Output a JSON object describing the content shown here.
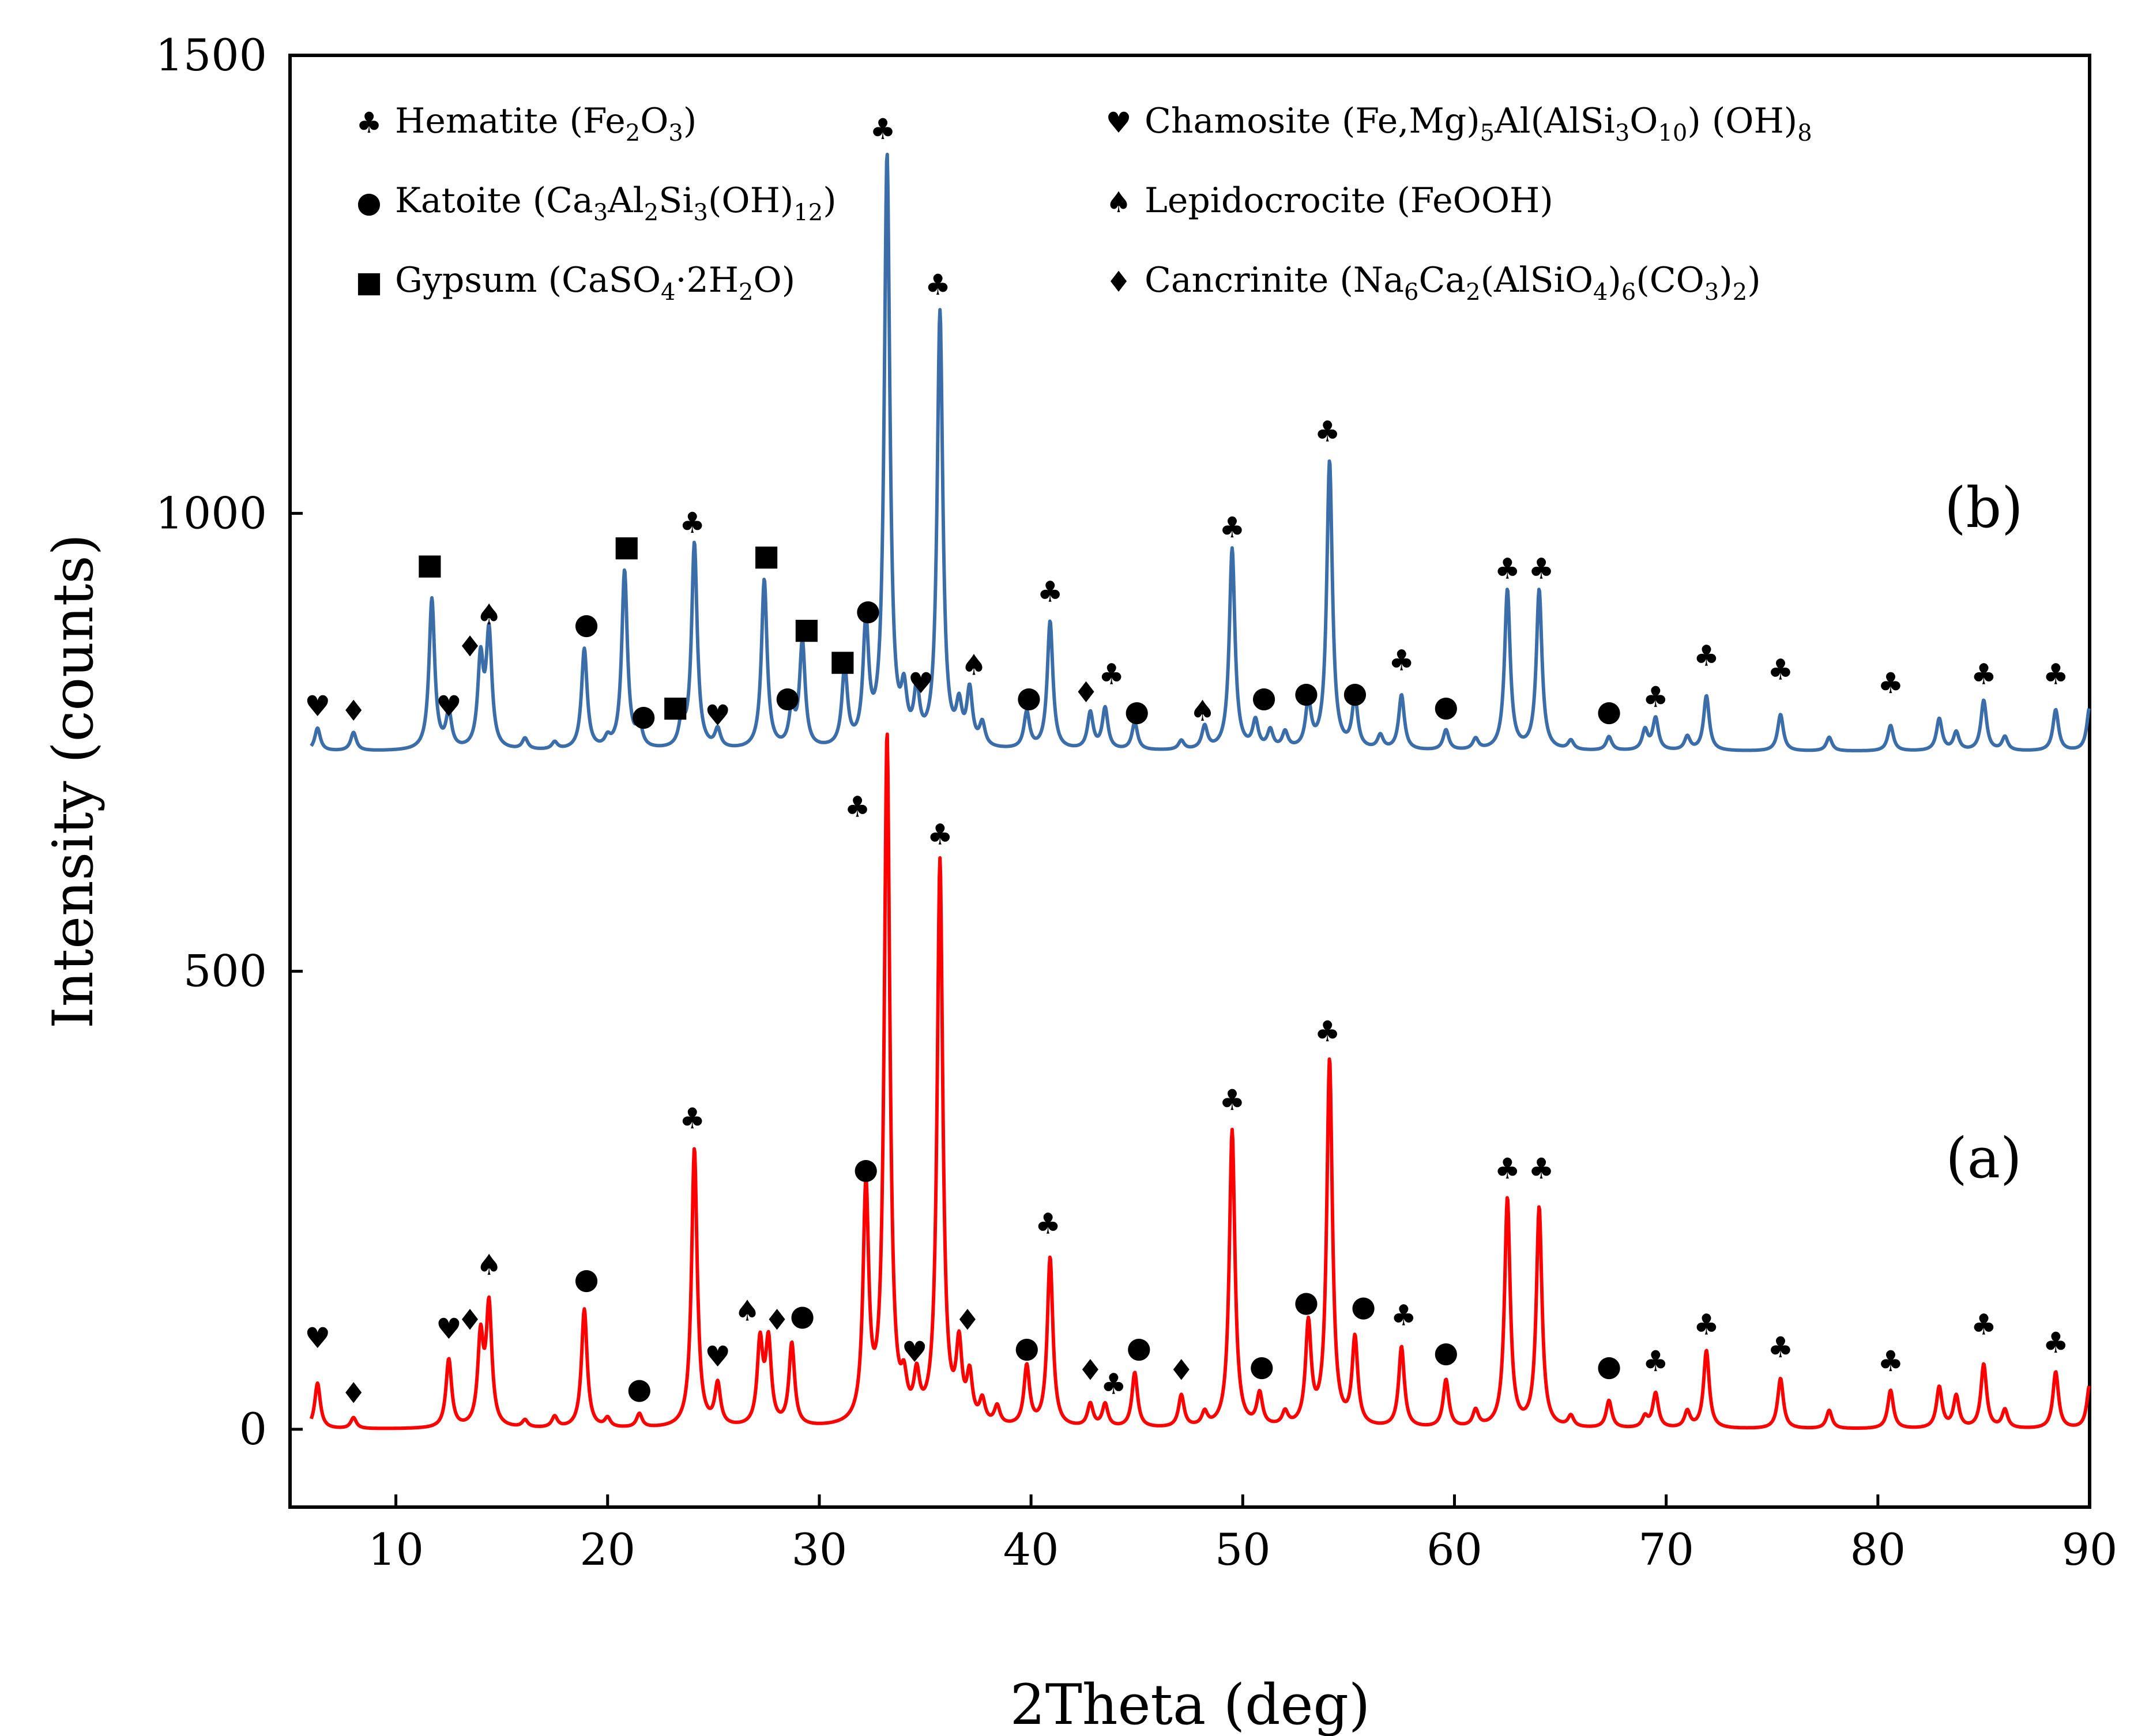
{
  "chart_data": {
    "type": "line",
    "title": "",
    "xlabel": "2Theta (deg)",
    "ylabel": "Intensity (counts)",
    "xlim": [
      5,
      90
    ],
    "ylim": [
      -85,
      1500
    ],
    "xticks": [
      10,
      20,
      30,
      40,
      50,
      60,
      70,
      80,
      90
    ],
    "yticks": [
      0,
      500,
      1000,
      1500
    ],
    "grid": false,
    "legend_position": "top",
    "legend": [
      {
        "symbol": "♣",
        "text": "Hematite (Fe",
        "sub1": "2",
        "mid1": "O",
        "sub2": "3",
        "tail": ")"
      },
      {
        "symbol": "●",
        "text": "Katoite (Ca",
        "sub1": "3",
        "mid1": "Al",
        "sub2": "2",
        "mid2": "Si",
        "sub3": "3",
        "mid3": "(OH)",
        "sub4": "12",
        "tail": ")"
      },
      {
        "symbol": "■",
        "text": "Gypsum (CaSO",
        "sub1": "4",
        "mid1": "·2H",
        "sub2": "2",
        "tail": "O)"
      },
      {
        "symbol": "♥",
        "text": "Chamosite (Fe,Mg)",
        "sub1": "5",
        "mid1": "Al(AlSi",
        "sub2": "3",
        "mid2": "O",
        "sub3": "10",
        "mid3": ") (OH)",
        "sub4": "8",
        "tail": ""
      },
      {
        "symbol": "♠",
        "text": "Lepidocrocite (FeOOH)"
      },
      {
        "symbol": "♦",
        "text": "Cancrinite (Na",
        "sub1": "6",
        "mid1": "Ca",
        "sub2": "2",
        "mid2": "(AlSiO",
        "sub3": "4",
        "mid3": ")",
        "sub4": "6",
        "mid4": "(CO",
        "sub5": "3",
        "mid5": ")",
        "sub6": "2",
        "tail": ")"
      }
    ],
    "series": [
      {
        "label": "(a)",
        "color": "#ff0000",
        "baseline": 0,
        "peaks": [
          [
            6.3,
            50
          ],
          [
            8.0,
            12
          ],
          [
            12.5,
            75
          ],
          [
            14.0,
            95
          ],
          [
            14.4,
            130
          ],
          [
            16.1,
            8
          ],
          [
            17.5,
            12
          ],
          [
            18.9,
            130
          ],
          [
            20.0,
            10
          ],
          [
            21.5,
            15
          ],
          [
            24.1,
            305
          ],
          [
            25.2,
            45
          ],
          [
            27.2,
            90
          ],
          [
            27.6,
            90
          ],
          [
            28.7,
            90
          ],
          [
            32.2,
            255
          ],
          [
            33.2,
            750
          ],
          [
            34.0,
            35
          ],
          [
            34.6,
            45
          ],
          [
            35.7,
            615
          ],
          [
            36.6,
            80
          ],
          [
            37.1,
            50
          ],
          [
            37.7,
            25
          ],
          [
            38.4,
            20
          ],
          [
            39.8,
            65
          ],
          [
            40.9,
            185
          ],
          [
            42.8,
            25
          ],
          [
            43.5,
            25
          ],
          [
            44.9,
            60
          ],
          [
            47.1,
            35
          ],
          [
            48.2,
            15
          ],
          [
            49.5,
            325
          ],
          [
            50.8,
            35
          ],
          [
            52.0,
            15
          ],
          [
            53.1,
            110
          ],
          [
            54.1,
            400
          ],
          [
            55.3,
            95
          ],
          [
            57.5,
            88
          ],
          [
            59.6,
            52
          ],
          [
            61.0,
            18
          ],
          [
            62.5,
            250
          ],
          [
            64.0,
            240
          ],
          [
            65.5,
            12
          ],
          [
            67.3,
            30
          ],
          [
            69.0,
            12
          ],
          [
            69.5,
            38
          ],
          [
            71.0,
            18
          ],
          [
            71.9,
            85
          ],
          [
            75.4,
            55
          ],
          [
            77.7,
            20
          ],
          [
            80.6,
            42
          ],
          [
            82.9,
            45
          ],
          [
            83.7,
            35
          ],
          [
            85.0,
            70
          ],
          [
            86.0,
            20
          ],
          [
            88.4,
            62
          ],
          [
            90.0,
            48
          ]
        ]
      },
      {
        "label": "(b)",
        "color": "#3b6ea8",
        "baseline": 740,
        "peaks": [
          [
            6.3,
            25
          ],
          [
            8.0,
            20
          ],
          [
            11.7,
            165
          ],
          [
            12.5,
            38
          ],
          [
            14.0,
            95
          ],
          [
            14.4,
            125
          ],
          [
            16.1,
            12
          ],
          [
            17.5,
            8
          ],
          [
            18.9,
            110
          ],
          [
            20.0,
            10
          ],
          [
            20.8,
            195
          ],
          [
            21.5,
            25
          ],
          [
            23.5,
            28
          ],
          [
            24.1,
            225
          ],
          [
            25.2,
            20
          ],
          [
            27.4,
            185
          ],
          [
            28.7,
            40
          ],
          [
            29.2,
            115
          ],
          [
            31.2,
            85
          ],
          [
            32.2,
            130
          ],
          [
            33.2,
            645
          ],
          [
            34.0,
            50
          ],
          [
            34.6,
            55
          ],
          [
            35.7,
            475
          ],
          [
            36.6,
            40
          ],
          [
            37.1,
            60
          ],
          [
            37.7,
            25
          ],
          [
            39.8,
            40
          ],
          [
            40.9,
            140
          ],
          [
            42.8,
            40
          ],
          [
            43.5,
            45
          ],
          [
            44.9,
            30
          ],
          [
            47.1,
            10
          ],
          [
            48.2,
            25
          ],
          [
            49.5,
            220
          ],
          [
            50.6,
            30
          ],
          [
            51.3,
            20
          ],
          [
            52.0,
            18
          ],
          [
            53.1,
            50
          ],
          [
            54.1,
            315
          ],
          [
            55.3,
            55
          ],
          [
            56.5,
            15
          ],
          [
            57.5,
            60
          ],
          [
            59.6,
            22
          ],
          [
            61.0,
            12
          ],
          [
            62.5,
            175
          ],
          [
            64.0,
            175
          ],
          [
            65.5,
            10
          ],
          [
            67.3,
            15
          ],
          [
            69.0,
            22
          ],
          [
            69.5,
            35
          ],
          [
            71.0,
            15
          ],
          [
            71.9,
            60
          ],
          [
            75.4,
            40
          ],
          [
            77.7,
            15
          ],
          [
            80.6,
            28
          ],
          [
            82.9,
            35
          ],
          [
            83.7,
            20
          ],
          [
            85.0,
            55
          ],
          [
            86.0,
            15
          ],
          [
            88.4,
            45
          ],
          [
            90.0,
            48
          ]
        ]
      }
    ],
    "annotations": [
      {
        "series": "(a)",
        "x": 6.3,
        "y": 100,
        "symbol": "♥"
      },
      {
        "series": "(a)",
        "x": 8.0,
        "y": 40,
        "symbol": "♦"
      },
      {
        "series": "(a)",
        "x": 12.5,
        "y": 110,
        "symbol": "♥"
      },
      {
        "series": "(a)",
        "x": 13.5,
        "y": 120,
        "symbol": "♦"
      },
      {
        "series": "(a)",
        "x": 14.4,
        "y": 180,
        "symbol": "♠"
      },
      {
        "series": "(a)",
        "x": 19.0,
        "y": 165,
        "symbol": "●"
      },
      {
        "series": "(a)",
        "x": 21.5,
        "y": 45,
        "symbol": "●"
      },
      {
        "series": "(a)",
        "x": 24.0,
        "y": 340,
        "symbol": "♣"
      },
      {
        "series": "(a)",
        "x": 25.2,
        "y": 80,
        "symbol": "♥"
      },
      {
        "series": "(a)",
        "x": 26.6,
        "y": 130,
        "symbol": "♠"
      },
      {
        "series": "(a)",
        "x": 28.0,
        "y": 120,
        "symbol": "♦"
      },
      {
        "series": "(a)",
        "x": 29.2,
        "y": 125,
        "symbol": "●"
      },
      {
        "series": "(a)",
        "x": 32.2,
        "y": 285,
        "symbol": "●"
      },
      {
        "series": "(a)",
        "x": 31.8,
        "y": 680,
        "symbol": "♣"
      },
      {
        "series": "(a)",
        "x": 34.5,
        "y": 85,
        "symbol": "♥"
      },
      {
        "series": "(a)",
        "x": 35.7,
        "y": 650,
        "symbol": "♣"
      },
      {
        "series": "(a)",
        "x": 37.0,
        "y": 120,
        "symbol": "♦"
      },
      {
        "series": "(a)",
        "x": 39.8,
        "y": 90,
        "symbol": "●"
      },
      {
        "series": "(a)",
        "x": 40.8,
        "y": 225,
        "symbol": "♣"
      },
      {
        "series": "(a)",
        "x": 42.8,
        "y": 65,
        "symbol": "♦"
      },
      {
        "series": "(a)",
        "x": 43.9,
        "y": 50,
        "symbol": "♣"
      },
      {
        "series": "(a)",
        "x": 45.1,
        "y": 90,
        "symbol": "●"
      },
      {
        "series": "(a)",
        "x": 47.1,
        "y": 65,
        "symbol": "♦"
      },
      {
        "series": "(a)",
        "x": 49.5,
        "y": 360,
        "symbol": "♣"
      },
      {
        "series": "(a)",
        "x": 50.9,
        "y": 70,
        "symbol": "●"
      },
      {
        "series": "(a)",
        "x": 53.0,
        "y": 140,
        "symbol": "●"
      },
      {
        "series": "(a)",
        "x": 54.0,
        "y": 435,
        "symbol": "♣"
      },
      {
        "series": "(a)",
        "x": 55.7,
        "y": 135,
        "symbol": "●"
      },
      {
        "series": "(a)",
        "x": 57.6,
        "y": 125,
        "symbol": "♣"
      },
      {
        "series": "(a)",
        "x": 59.6,
        "y": 85,
        "symbol": "●"
      },
      {
        "series": "(a)",
        "x": 62.5,
        "y": 285,
        "symbol": "♣"
      },
      {
        "series": "(a)",
        "x": 64.1,
        "y": 285,
        "symbol": "♣"
      },
      {
        "series": "(a)",
        "x": 67.3,
        "y": 70,
        "symbol": "●"
      },
      {
        "series": "(a)",
        "x": 69.5,
        "y": 75,
        "symbol": "♣"
      },
      {
        "series": "(a)",
        "x": 71.9,
        "y": 115,
        "symbol": "♣"
      },
      {
        "series": "(a)",
        "x": 75.4,
        "y": 90,
        "symbol": "♣"
      },
      {
        "series": "(a)",
        "x": 80.6,
        "y": 75,
        "symbol": "♣"
      },
      {
        "series": "(a)",
        "x": 85.0,
        "y": 115,
        "symbol": "♣"
      },
      {
        "series": "(a)",
        "x": 88.4,
        "y": 95,
        "symbol": "♣"
      },
      {
        "series": "(b)",
        "x": 6.3,
        "y": 790,
        "symbol": "♥"
      },
      {
        "series": "(b)",
        "x": 8.0,
        "y": 785,
        "symbol": "♦"
      },
      {
        "series": "(b)",
        "x": 11.6,
        "y": 945,
        "symbol": "■"
      },
      {
        "series": "(b)",
        "x": 12.5,
        "y": 790,
        "symbol": "♥"
      },
      {
        "series": "(b)",
        "x": 13.5,
        "y": 855,
        "symbol": "♦"
      },
      {
        "series": "(b)",
        "x": 14.4,
        "y": 890,
        "symbol": "♠"
      },
      {
        "series": "(b)",
        "x": 19.0,
        "y": 880,
        "symbol": "●"
      },
      {
        "series": "(b)",
        "x": 20.9,
        "y": 965,
        "symbol": "■"
      },
      {
        "series": "(b)",
        "x": 21.7,
        "y": 780,
        "symbol": "●"
      },
      {
        "series": "(b)",
        "x": 23.2,
        "y": 790,
        "symbol": "■"
      },
      {
        "series": "(b)",
        "x": 24.0,
        "y": 990,
        "symbol": "♣"
      },
      {
        "series": "(b)",
        "x": 25.2,
        "y": 780,
        "symbol": "♥"
      },
      {
        "series": "(b)",
        "x": 27.5,
        "y": 955,
        "symbol": "■"
      },
      {
        "series": "(b)",
        "x": 28.5,
        "y": 800,
        "symbol": "●"
      },
      {
        "series": "(b)",
        "x": 29.4,
        "y": 875,
        "symbol": "■"
      },
      {
        "series": "(b)",
        "x": 31.1,
        "y": 840,
        "symbol": "■"
      },
      {
        "series": "(b)",
        "x": 32.3,
        "y": 895,
        "symbol": "●"
      },
      {
        "series": "(b)",
        "x": 33.0,
        "y": 1420,
        "symbol": "♣"
      },
      {
        "series": "(b)",
        "x": 34.8,
        "y": 815,
        "symbol": "♥"
      },
      {
        "series": "(b)",
        "x": 35.6,
        "y": 1250,
        "symbol": "♣"
      },
      {
        "series": "(b)",
        "x": 37.3,
        "y": 835,
        "symbol": "♠"
      },
      {
        "series": "(b)",
        "x": 39.9,
        "y": 800,
        "symbol": "●"
      },
      {
        "series": "(b)",
        "x": 40.9,
        "y": 915,
        "symbol": "♣"
      },
      {
        "series": "(b)",
        "x": 42.6,
        "y": 805,
        "symbol": "♦"
      },
      {
        "series": "(b)",
        "x": 43.8,
        "y": 825,
        "symbol": "♣"
      },
      {
        "series": "(b)",
        "x": 45.0,
        "y": 785,
        "symbol": "●"
      },
      {
        "series": "(b)",
        "x": 48.1,
        "y": 785,
        "symbol": "♠"
      },
      {
        "series": "(b)",
        "x": 49.5,
        "y": 985,
        "symbol": "♣"
      },
      {
        "series": "(b)",
        "x": 51.0,
        "y": 800,
        "symbol": "●"
      },
      {
        "series": "(b)",
        "x": 53.0,
        "y": 805,
        "symbol": "●"
      },
      {
        "series": "(b)",
        "x": 54.0,
        "y": 1090,
        "symbol": "♣"
      },
      {
        "series": "(b)",
        "x": 55.3,
        "y": 805,
        "symbol": "●"
      },
      {
        "series": "(b)",
        "x": 57.5,
        "y": 840,
        "symbol": "♣"
      },
      {
        "series": "(b)",
        "x": 59.6,
        "y": 790,
        "symbol": "●"
      },
      {
        "series": "(b)",
        "x": 62.5,
        "y": 940,
        "symbol": "♣"
      },
      {
        "series": "(b)",
        "x": 64.1,
        "y": 940,
        "symbol": "♣"
      },
      {
        "series": "(b)",
        "x": 67.3,
        "y": 785,
        "symbol": "●"
      },
      {
        "series": "(b)",
        "x": 69.5,
        "y": 800,
        "symbol": "♣"
      },
      {
        "series": "(b)",
        "x": 71.9,
        "y": 845,
        "symbol": "♣"
      },
      {
        "series": "(b)",
        "x": 75.4,
        "y": 830,
        "symbol": "♣"
      },
      {
        "series": "(b)",
        "x": 80.6,
        "y": 815,
        "symbol": "♣"
      },
      {
        "series": "(b)",
        "x": 85.0,
        "y": 825,
        "symbol": "♣"
      },
      {
        "series": "(b)",
        "x": 88.4,
        "y": 825,
        "symbol": "♣"
      }
    ],
    "panel_labels": [
      {
        "text": "(a)",
        "x": 85.0,
        "y": 275
      },
      {
        "text": "(b)",
        "x": 85.0,
        "y": 985
      }
    ]
  }
}
